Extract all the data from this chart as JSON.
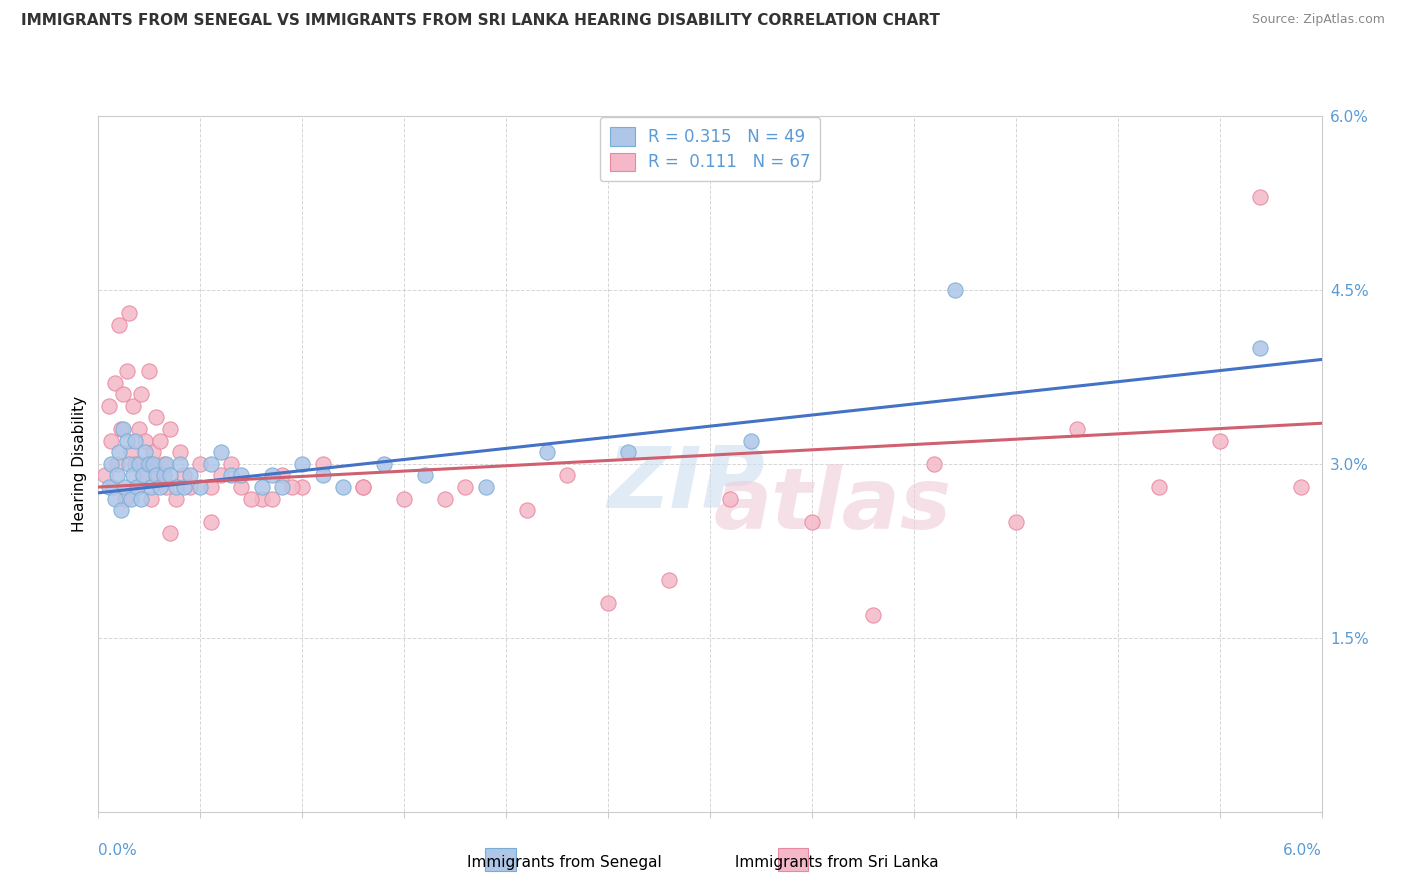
{
  "title": "IMMIGRANTS FROM SENEGAL VS IMMIGRANTS FROM SRI LANKA HEARING DISABILITY CORRELATION CHART",
  "source": "Source: ZipAtlas.com",
  "ylabel": "Hearing Disability",
  "xmin": 0.0,
  "xmax": 6.0,
  "ymin": 0.0,
  "ymax": 6.0,
  "yticks": [
    0.0,
    1.5,
    3.0,
    4.5,
    6.0
  ],
  "xticks": [
    0.0,
    0.5,
    1.0,
    1.5,
    2.0,
    2.5,
    3.0,
    3.5,
    4.0,
    4.5,
    5.0,
    5.5,
    6.0
  ],
  "series1_name": "Immigrants from Senegal",
  "series1_color": "#aec6e8",
  "series1_edge": "#7aadd4",
  "series1_R": 0.315,
  "series1_N": 49,
  "series2_name": "Immigrants from Sri Lanka",
  "series2_color": "#f4b8c8",
  "series2_edge": "#e888a0",
  "series2_R": 0.111,
  "series2_N": 67,
  "trend1_color": "#4472c4",
  "trend2_color": "#d06070",
  "tick_color": "#5b9bd5",
  "grid_color": "#cccccc",
  "title_color": "#333333",
  "source_color": "#888888",
  "senegal_x": [
    0.05,
    0.06,
    0.08,
    0.09,
    0.1,
    0.11,
    0.12,
    0.13,
    0.14,
    0.15,
    0.16,
    0.17,
    0.18,
    0.19,
    0.2,
    0.21,
    0.22,
    0.23,
    0.25,
    0.26,
    0.27,
    0.28,
    0.3,
    0.32,
    0.33,
    0.35,
    0.38,
    0.4,
    0.42,
    0.45,
    0.5,
    0.55,
    0.6,
    0.65,
    0.7,
    0.8,
    0.85,
    0.9,
    1.0,
    1.1,
    1.2,
    1.4,
    1.6,
    1.9,
    2.2,
    2.6,
    3.2,
    4.2,
    5.7
  ],
  "senegal_y": [
    2.8,
    3.0,
    2.7,
    2.9,
    3.1,
    2.6,
    3.3,
    2.8,
    3.2,
    3.0,
    2.7,
    2.9,
    3.2,
    2.8,
    3.0,
    2.7,
    2.9,
    3.1,
    3.0,
    2.8,
    3.0,
    2.9,
    2.8,
    2.9,
    3.0,
    2.9,
    2.8,
    3.0,
    2.8,
    2.9,
    2.8,
    3.0,
    3.1,
    2.9,
    2.9,
    2.8,
    2.9,
    2.8,
    3.0,
    2.9,
    2.8,
    3.0,
    2.9,
    2.8,
    3.1,
    3.1,
    3.2,
    4.5,
    4.0
  ],
  "srilanka_x": [
    0.03,
    0.05,
    0.06,
    0.07,
    0.08,
    0.09,
    0.1,
    0.11,
    0.12,
    0.13,
    0.14,
    0.15,
    0.16,
    0.17,
    0.18,
    0.19,
    0.2,
    0.21,
    0.22,
    0.23,
    0.24,
    0.25,
    0.26,
    0.27,
    0.28,
    0.29,
    0.3,
    0.32,
    0.33,
    0.35,
    0.38,
    0.4,
    0.42,
    0.45,
    0.5,
    0.55,
    0.6,
    0.65,
    0.7,
    0.8,
    0.9,
    1.0,
    1.1,
    1.3,
    1.5,
    1.8,
    2.1,
    2.3,
    2.5,
    2.8,
    3.1,
    3.5,
    3.8,
    4.1,
    4.5,
    4.8,
    5.2,
    5.5,
    5.7,
    5.9,
    0.35,
    0.55,
    0.75,
    0.85,
    0.95,
    1.3,
    1.7
  ],
  "srilanka_y": [
    2.9,
    3.5,
    3.2,
    2.8,
    3.7,
    3.0,
    4.2,
    3.3,
    3.6,
    2.7,
    3.8,
    4.3,
    3.1,
    3.5,
    3.0,
    2.8,
    3.3,
    3.6,
    2.9,
    3.2,
    3.0,
    3.8,
    2.7,
    3.1,
    3.4,
    2.9,
    3.2,
    3.0,
    2.8,
    3.3,
    2.7,
    3.1,
    2.9,
    2.8,
    3.0,
    2.8,
    2.9,
    3.0,
    2.8,
    2.7,
    2.9,
    2.8,
    3.0,
    2.8,
    2.7,
    2.8,
    2.6,
    2.9,
    1.8,
    2.0,
    2.7,
    2.5,
    1.7,
    3.0,
    2.5,
    3.3,
    2.8,
    3.2,
    5.3,
    2.8,
    2.4,
    2.5,
    2.7,
    2.7,
    2.8,
    2.8,
    2.7
  ],
  "trend1_x0": 0.0,
  "trend1_y0": 2.75,
  "trend1_x1": 6.0,
  "trend1_y1": 3.9,
  "trend2_x0": 0.0,
  "trend2_y0": 2.8,
  "trend2_x1": 6.0,
  "trend2_y1": 3.35
}
